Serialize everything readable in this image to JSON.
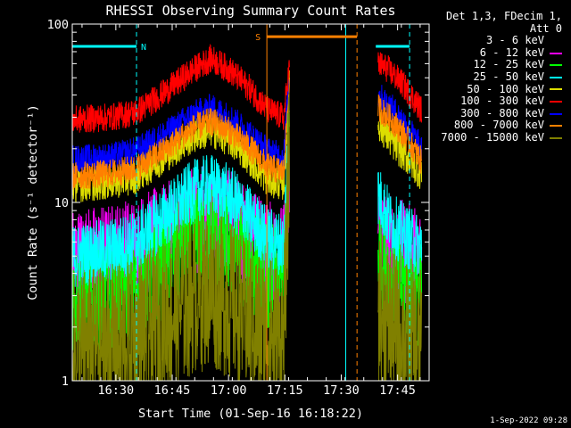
{
  "chart_data": {
    "type": "line",
    "title": "RHESSI Observing Summary Count Rates",
    "xlabel": "Start Time (01-Sep-16 16:18:22)",
    "ylabel": "Count Rate (s⁻¹ detector⁻¹)",
    "yscale": "log",
    "ylim": [
      1,
      100
    ],
    "xlim_minutes": [
      0,
      95
    ],
    "x_unit": "minutes after 16:18:22",
    "xticks": [
      {
        "label": "16:30",
        "minute": 11.6
      },
      {
        "label": "16:45",
        "minute": 26.6
      },
      {
        "label": "17:00",
        "minute": 41.6
      },
      {
        "label": "17:15",
        "minute": 56.6
      },
      {
        "label": "17:30",
        "minute": 71.6
      },
      {
        "label": "17:45",
        "minute": 86.6
      }
    ],
    "yticks": [
      {
        "label": "1",
        "value": 1
      },
      {
        "label": "10",
        "value": 10
      },
      {
        "label": "100",
        "value": 100
      }
    ],
    "legend_header": [
      "Det 1,3, FDecim 1,",
      "Att 0"
    ],
    "series": [
      {
        "name": "3 - 6 keV",
        "color": "#000000",
        "noise": 0.45,
        "values": [
          [
            0,
            2.2
          ],
          [
            10,
            2.3
          ],
          [
            17,
            2.5
          ],
          [
            26,
            3.2
          ],
          [
            32,
            4.5
          ],
          [
            37,
            5.0
          ],
          [
            42,
            4.4
          ],
          [
            47,
            3.5
          ],
          [
            51,
            2.8
          ],
          [
            54,
            2.4
          ],
          [
            56.3,
            2.4
          ],
          [
            57.8,
            50
          ]
        ]
      },
      {
        "name": "6 - 12 keV",
        "color": "#ff00ff",
        "noise": 0.3,
        "values": [
          [
            0,
            4.7
          ],
          [
            10,
            5.0
          ],
          [
            17,
            5.5
          ],
          [
            25,
            6.5
          ],
          [
            32,
            7.8
          ],
          [
            37,
            8.5
          ],
          [
            42,
            7.6
          ],
          [
            47,
            6.2
          ],
          [
            52,
            5.2
          ],
          [
            56.3,
            5.0
          ],
          [
            57.8,
            12
          ]
        ]
      },
      {
        "name": "12 - 25 keV",
        "color": "#00ff00",
        "noise": 0.3,
        "values": [
          [
            0,
            2.9
          ],
          [
            10,
            3.0
          ],
          [
            17,
            3.4
          ],
          [
            25,
            4.5
          ],
          [
            32,
            6.0
          ],
          [
            37,
            6.6
          ],
          [
            42,
            5.8
          ],
          [
            47,
            4.8
          ],
          [
            52,
            3.9
          ],
          [
            56.3,
            3.7
          ],
          [
            57.8,
            30
          ]
        ]
      },
      {
        "name": "25 - 50 keV",
        "color": "#00ffff",
        "noise": 0.18,
        "values": [
          [
            0,
            5.0
          ],
          [
            10,
            5.4
          ],
          [
            17,
            6.0
          ],
          [
            25,
            8.5
          ],
          [
            32,
            11.5
          ],
          [
            37,
            12.5
          ],
          [
            42,
            10.8
          ],
          [
            47,
            8.3
          ],
          [
            52,
            6.3
          ],
          [
            56.3,
            5.8
          ],
          [
            57.8,
            40
          ]
        ]
      },
      {
        "name": "50 - 100 keV",
        "color": "#dddd00",
        "noise": 0.1,
        "values": [
          [
            0,
            12.5
          ],
          [
            10,
            13.0
          ],
          [
            17,
            14.0
          ],
          [
            25,
            18.5
          ],
          [
            32,
            23.5
          ],
          [
            37,
            25.5
          ],
          [
            42,
            22.5
          ],
          [
            47,
            18.0
          ],
          [
            52,
            13.5
          ],
          [
            56.3,
            12.8
          ],
          [
            57.8,
            45
          ]
        ]
      },
      {
        "name": "100 - 300 keV",
        "color": "#ff0000",
        "noise": 0.08,
        "values": [
          [
            0,
            29
          ],
          [
            10,
            30
          ],
          [
            17,
            32
          ],
          [
            25,
            42
          ],
          [
            32,
            55
          ],
          [
            37,
            64
          ],
          [
            42,
            55
          ],
          [
            47,
            44
          ],
          [
            52,
            33
          ],
          [
            56.3,
            30
          ],
          [
            57.8,
            58
          ]
        ]
      },
      {
        "name": "300 - 800 keV",
        "color": "#0000ff",
        "noise": 0.08,
        "values": [
          [
            0,
            17.5
          ],
          [
            10,
            18.0
          ],
          [
            17,
            19.5
          ],
          [
            25,
            24.5
          ],
          [
            32,
            31
          ],
          [
            37,
            34
          ],
          [
            42,
            30
          ],
          [
            47,
            24.5
          ],
          [
            52,
            19.5
          ],
          [
            56.3,
            18.0
          ],
          [
            57.8,
            52
          ]
        ]
      },
      {
        "name": "800 - 7000 keV",
        "color": "#ff8000",
        "noise": 0.08,
        "values": [
          [
            0,
            14.0
          ],
          [
            10,
            14.5
          ],
          [
            17,
            15.5
          ],
          [
            25,
            20.0
          ],
          [
            32,
            26.0
          ],
          [
            37,
            28.5
          ],
          [
            42,
            25.0
          ],
          [
            47,
            20.5
          ],
          [
            52,
            15.8
          ],
          [
            56.3,
            14.8
          ],
          [
            57.8,
            48
          ]
        ]
      },
      {
        "name": "7000 - 15000 keV",
        "color": "#808000",
        "noise": 0.45,
        "values": [
          [
            0,
            1.5
          ],
          [
            10,
            1.6
          ],
          [
            17,
            1.7
          ],
          [
            26,
            2.3
          ],
          [
            32,
            3.0
          ],
          [
            37,
            3.3
          ],
          [
            42,
            2.8
          ],
          [
            47,
            2.2
          ],
          [
            52,
            1.8
          ],
          [
            56.3,
            1.7
          ],
          [
            57.8,
            20
          ]
        ]
      }
    ],
    "resume_values": {
      "3 - 6 keV": [
        [
          81.4,
          3.0
        ],
        [
          85,
          2.2
        ],
        [
          88,
          1.8
        ],
        [
          93,
          1.6
        ]
      ],
      "6 - 12 keV": [
        [
          81.4,
          7.0
        ],
        [
          85,
          5.5
        ],
        [
          90,
          5.0
        ],
        [
          93,
          4.8
        ]
      ],
      "12 - 25 keV": [
        [
          81.4,
          5.5
        ],
        [
          85,
          3.8
        ],
        [
          90,
          3.2
        ],
        [
          93,
          3.0
        ]
      ],
      "25 - 50 keV": [
        [
          81.4,
          11.0
        ],
        [
          85,
          7.5
        ],
        [
          90,
          6.2
        ],
        [
          93,
          5.6
        ]
      ],
      "50 - 100 keV": [
        [
          81.4,
          28
        ],
        [
          85,
          22
        ],
        [
          89,
          18
        ],
        [
          93,
          14.5
        ]
      ],
      "100 - 300 keV": [
        [
          81.4,
          60
        ],
        [
          84,
          56
        ],
        [
          88,
          46
        ],
        [
          93,
          33
        ]
      ],
      "300 - 800 keV": [
        [
          81.4,
          40
        ],
        [
          85,
          34
        ],
        [
          89,
          27
        ],
        [
          93,
          20
        ]
      ],
      "800 - 7000 keV": [
        [
          81.4,
          34
        ],
        [
          85,
          29
        ],
        [
          89,
          23
        ],
        [
          93,
          17
        ]
      ],
      "7000 - 15000 keV": [
        [
          81.4,
          2.6
        ],
        [
          85,
          2.0
        ],
        [
          89,
          1.7
        ],
        [
          93,
          1.5
        ]
      ]
    },
    "annotations": [
      {
        "label": "N",
        "color": "#00ffff",
        "minute_start": 0,
        "minute_end": 17.1,
        "level": 75
      },
      {
        "label": "S",
        "color": "#ff8000",
        "minute_start": 51.8,
        "minute_end": 75.8,
        "level": 85
      },
      {
        "label": "",
        "color": "#00ffff",
        "minute_start": 80.8,
        "minute_end": 89.8,
        "level": 75
      }
    ],
    "vlines": [
      {
        "minute": 17.1,
        "color": "#00ffff",
        "style": "dashed"
      },
      {
        "minute": 51.8,
        "color": "#ff8000",
        "style": "solid"
      },
      {
        "minute": 72.8,
        "color": "#00ffff",
        "style": "solid"
      },
      {
        "minute": 75.8,
        "color": "#ff8000",
        "style": "dashed"
      },
      {
        "minute": 89.8,
        "color": "#00ffff",
        "style": "dashed"
      }
    ]
  },
  "timestamp": "1-Sep-2022 09:28"
}
